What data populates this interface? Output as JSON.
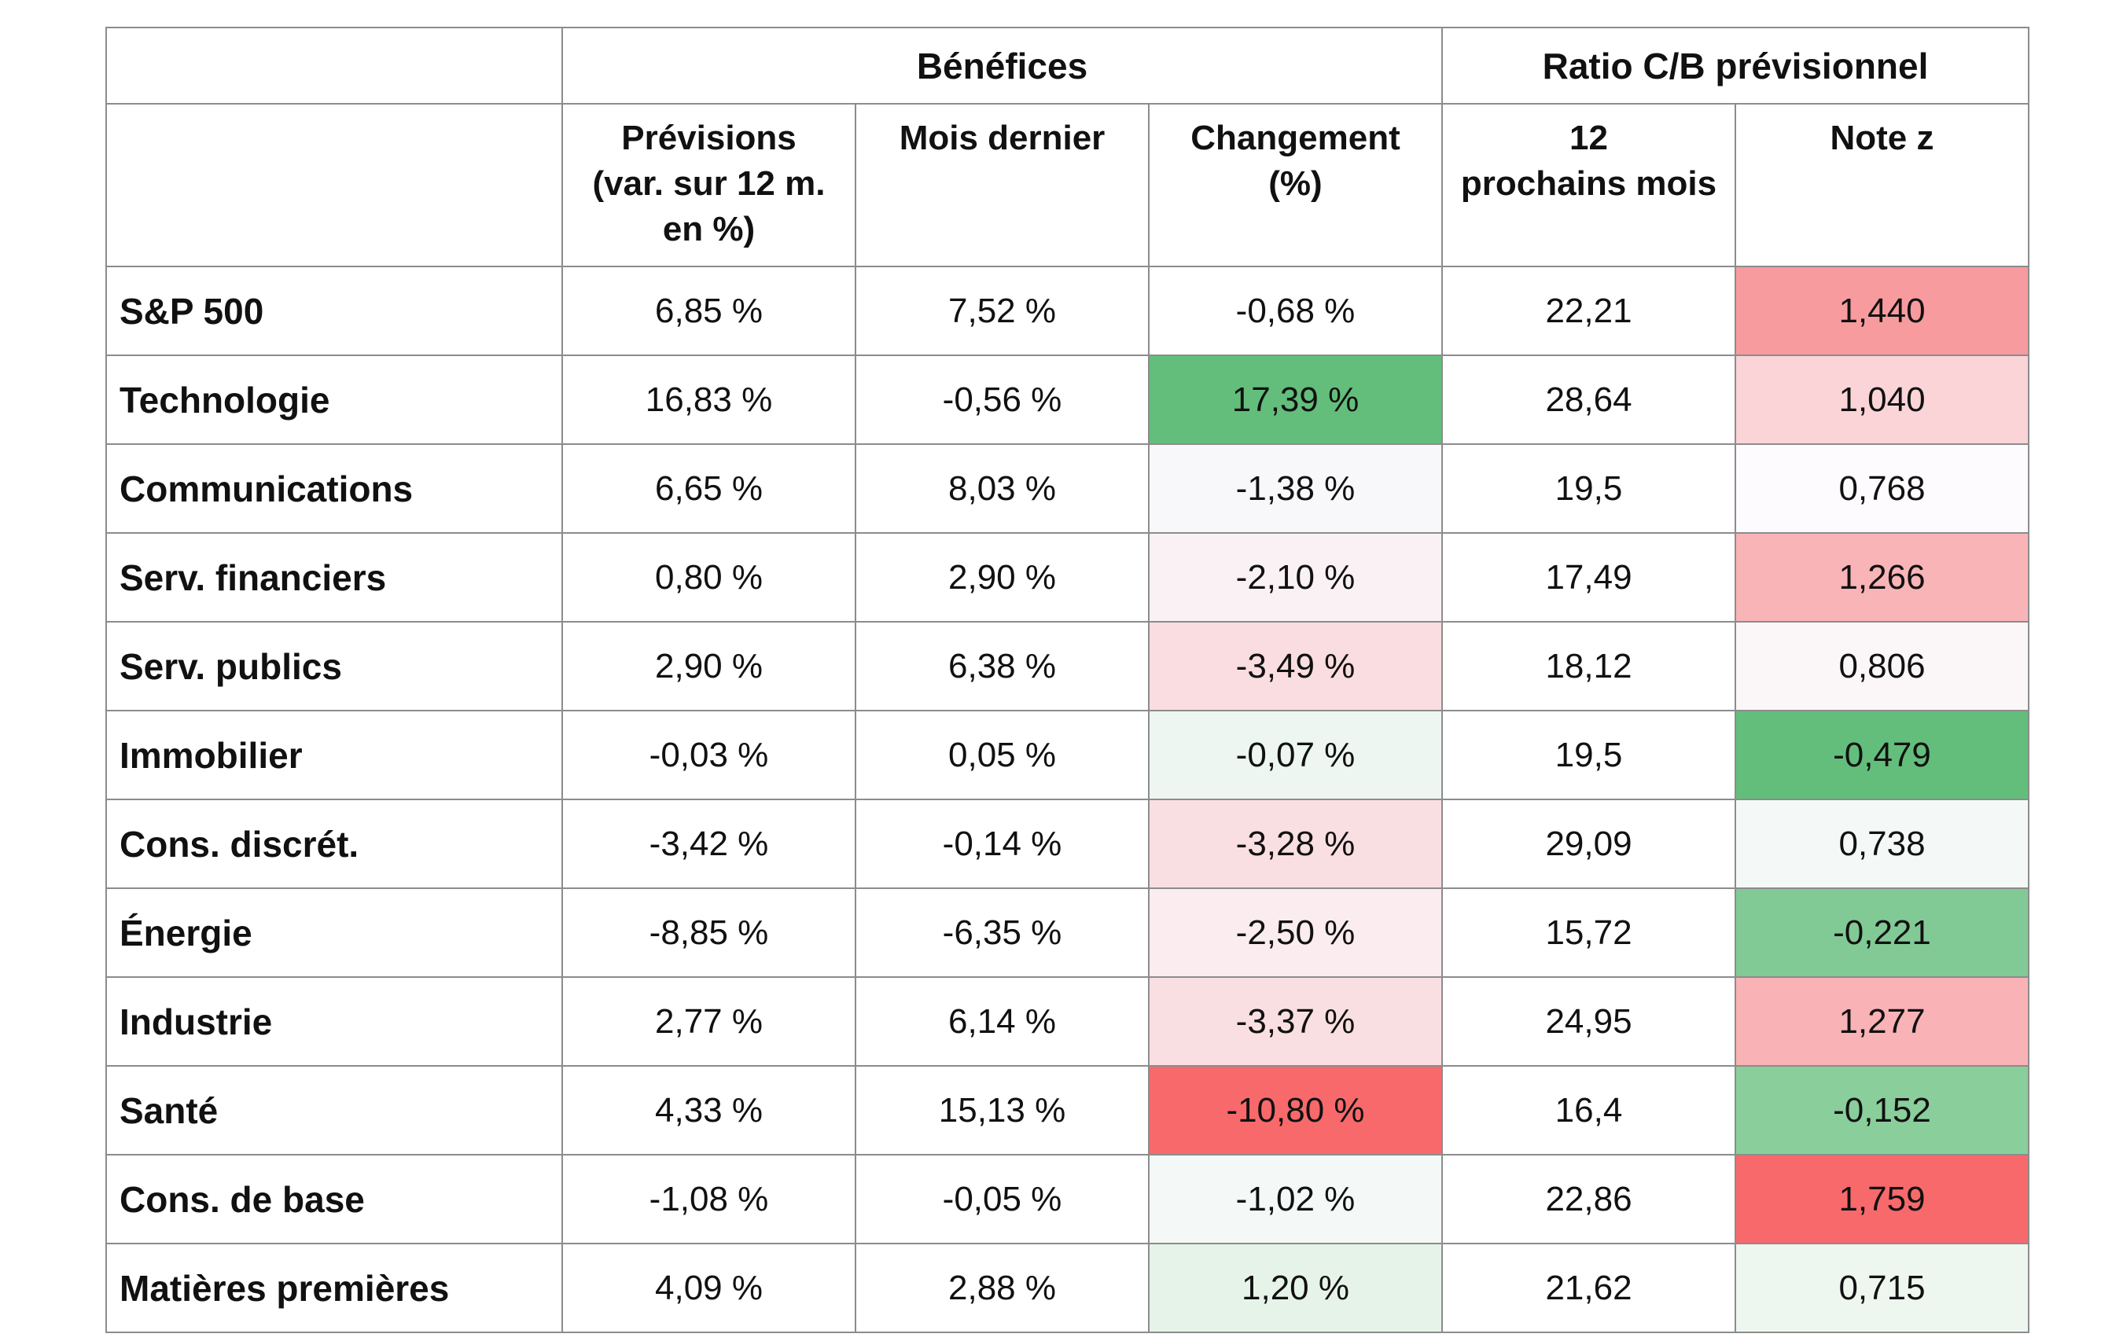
{
  "chart_data": {
    "type": "table",
    "group_headers": [
      "",
      "Bénéfices",
      "Ratio C/B prévisionnel"
    ],
    "columns": [
      "Prévisions\n(var. sur 12 m.\nen %)",
      "Mois dernier",
      "Changement\n(%)",
      "12\nprochains mois",
      "Note z"
    ],
    "rows": [
      {
        "label": "S&P 500",
        "cells": [
          "6,85 %",
          "7,52 %",
          "-0,68 %",
          "22,21",
          "1,440"
        ],
        "colors": [
          "",
          "",
          "",
          "",
          "#f89b9e"
        ]
      },
      {
        "label": "Technologie",
        "cells": [
          "16,83 %",
          "-0,56 %",
          "17,39 %",
          "28,64",
          "1,040"
        ],
        "colors": [
          "",
          "",
          "#63be7b",
          "",
          "#fad4d7"
        ]
      },
      {
        "label": "Communications",
        "cells": [
          "6,65 %",
          "8,03 %",
          "-1,38 %",
          "19,5",
          "0,768"
        ],
        "colors": [
          "",
          "",
          "#f8f8fb",
          "",
          "#fdfbfd"
        ]
      },
      {
        "label": "Serv. financiers",
        "cells": [
          "0,80 %",
          "2,90 %",
          "-2,10 %",
          "17,49",
          "1,266"
        ],
        "colors": [
          "",
          "",
          "#faf1f4",
          "",
          "#f9b4b8"
        ]
      },
      {
        "label": "Serv. publics",
        "cells": [
          "2,90 %",
          "6,38 %",
          "-3,49 %",
          "18,12",
          "0,806"
        ],
        "colors": [
          "",
          "",
          "#fadde0",
          "",
          "#fbf7f9"
        ]
      },
      {
        "label": "Immobilier",
        "cells": [
          "-0,03 %",
          "0,05 %",
          "-0,07 %",
          "19,5",
          "-0,479"
        ],
        "colors": [
          "",
          "",
          "#edf6f0",
          "",
          "#63be7b"
        ]
      },
      {
        "label": "Cons. discrét.",
        "cells": [
          "-3,42 %",
          "-0,14 %",
          "-3,28 %",
          "29,09",
          "0,738"
        ],
        "colors": [
          "",
          "",
          "#fadfe2",
          "",
          "#f4f8f6"
        ]
      },
      {
        "label": "Énergie",
        "cells": [
          "-8,85 %",
          "-6,35 %",
          "-2,50 %",
          "15,72",
          "-0,221"
        ],
        "colors": [
          "",
          "",
          "#faecef",
          "",
          "#81ca95"
        ]
      },
      {
        "label": "Industrie",
        "cells": [
          "2,77 %",
          "6,14 %",
          "-3,37 %",
          "24,95",
          "1,277"
        ],
        "colors": [
          "",
          "",
          "#fadfe2",
          "",
          "#f9b2b6"
        ]
      },
      {
        "label": "Santé",
        "cells": [
          "4,33 %",
          "15,13 %",
          "-10,80 %",
          "16,4",
          "-0,152"
        ],
        "colors": [
          "",
          "",
          "#f8696b",
          "",
          "#8ace9c"
        ]
      },
      {
        "label": "Cons. de base",
        "cells": [
          "-1,08 %",
          "-0,05 %",
          "-1,02 %",
          "22,86",
          "1,759"
        ],
        "colors": [
          "",
          "",
          "#f4f8f6",
          "",
          "#f8696b"
        ]
      },
      {
        "label": "Matières premières",
        "cells": [
          "4,09 %",
          "2,88 %",
          "1,20 %",
          "21,62",
          "0,715"
        ],
        "colors": [
          "",
          "",
          "#e6f3e9",
          "",
          "#eef6f0"
        ]
      }
    ]
  }
}
